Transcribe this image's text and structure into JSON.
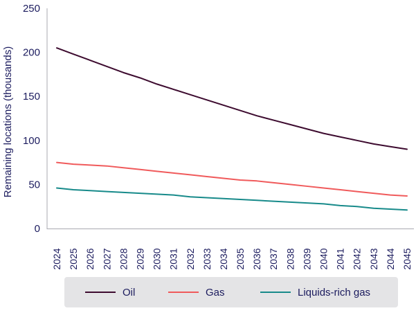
{
  "chart_data": {
    "type": "line",
    "title": "",
    "xlabel": "",
    "ylabel": "Remaining locations (thousands)",
    "ylim": [
      0,
      250
    ],
    "yticks": [
      "0",
      "50",
      "100",
      "150",
      "200",
      "250"
    ],
    "grid": false,
    "legend_position": "bottom",
    "x": [
      "2024",
      "2025",
      "2026",
      "2027",
      "2028",
      "2029",
      "2030",
      "2031",
      "2032",
      "2033",
      "2034",
      "2035",
      "2036",
      "2037",
      "2038",
      "2039",
      "2040",
      "2041",
      "2042",
      "2043",
      "2044",
      "2045"
    ],
    "series": [
      {
        "name": "Oil",
        "color": "#3d0b2f",
        "values": [
          205,
          198,
          191,
          184,
          177,
          171,
          164,
          158,
          152,
          146,
          140,
          134,
          128,
          123,
          118,
          113,
          108,
          104,
          100,
          96,
          93,
          90
        ]
      },
      {
        "name": "Gas",
        "color": "#f05a5b",
        "values": [
          75,
          73,
          72,
          71,
          69,
          67,
          65,
          63,
          61,
          59,
          57,
          55,
          54,
          52,
          50,
          48,
          46,
          44,
          42,
          40,
          38,
          37
        ]
      },
      {
        "name": "Liquids-rich gas",
        "color": "#178a8a",
        "values": [
          46,
          44,
          43,
          42,
          41,
          40,
          39,
          38,
          36,
          35,
          34,
          33,
          32,
          31,
          30,
          29,
          28,
          26,
          25,
          23,
          22,
          21
        ]
      }
    ]
  }
}
